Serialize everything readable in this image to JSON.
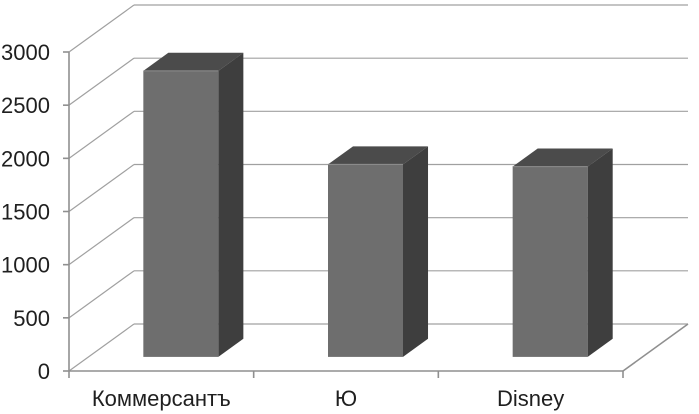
{
  "chart": {
    "background": "#FFFFFF"
  },
  "chart_data": {
    "type": "bar",
    "variant": "3d-column",
    "title": "",
    "xlabel": "",
    "ylabel": "",
    "categories": [
      "Коммерсантъ",
      "Ю",
      "Disney"
    ],
    "values": [
      2690,
      1810,
      1790
    ],
    "ylim": [
      0,
      3000
    ],
    "ytick_step": 500,
    "ytick_labels": [
      "0",
      "500",
      "1000",
      "1500",
      "2000",
      "2500",
      "3000"
    ],
    "grid": true,
    "legend": false,
    "colors": {
      "bar_front": "#6E6E6E",
      "bar_top": "#4B4B4B",
      "bar_side": "#3E3E3E",
      "bar_top_edge": "#8F8F8F",
      "gridline": "#A0A0A0",
      "axis": "#8F8F8F",
      "text": "#1F1F1F",
      "background": "#FFFFFF"
    }
  }
}
